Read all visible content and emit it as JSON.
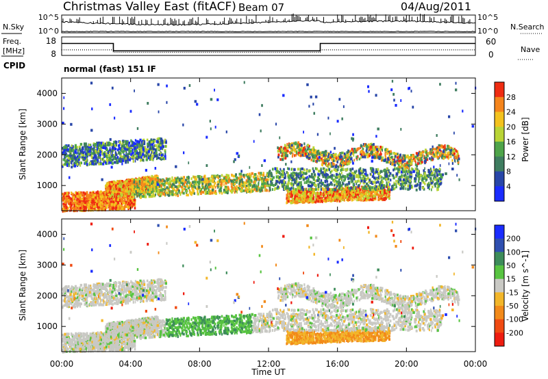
{
  "header": {
    "title": "Christmas Valley East (fitACF)",
    "beam": "Beam 07",
    "date": "04/Aug/2011",
    "cpid": "CPID",
    "program": "normal (fast) 151 IF"
  },
  "panel_labels": {
    "nsky": "N.Sky",
    "nsearch": "N.Search",
    "freq": "Freq.",
    "freq_unit": "[MHz]",
    "nave": "Nave"
  },
  "chart_data": [
    {
      "type": "line",
      "name": "noise",
      "left_axis": {
        "label": "N.Sky",
        "ticks": [
          "10^5",
          "10^0"
        ]
      },
      "right_axis": {
        "label": "N.Search",
        "ticks": [
          "10^5",
          "10^0"
        ]
      },
      "x": [
        0,
        24
      ],
      "description_units": "hours UT"
    },
    {
      "type": "line",
      "name": "frequency",
      "left_axis": {
        "label": "Freq. [MHz]",
        "ticks": [
          "18",
          "8"
        ],
        "ylim": [
          8,
          18
        ]
      },
      "right_axis": {
        "label": "Nave",
        "ticks": [
          "60",
          "0"
        ],
        "ylim": [
          0,
          60
        ]
      },
      "freq_series": {
        "x": [
          0,
          3.0,
          3.0,
          15.0,
          15.0,
          24
        ],
        "y": [
          14.5,
          14.5,
          10.5,
          10.5,
          14.5,
          14.5
        ]
      },
      "nave_series": {
        "x": [
          0,
          3.0,
          3.0,
          15.0,
          15.0,
          24
        ],
        "y": [
          18,
          18,
          10,
          10,
          18,
          18
        ]
      }
    },
    {
      "type": "heatmap",
      "name": "power",
      "ylabel": "Slant Range [km]",
      "yticks": [
        1000,
        2000,
        3000,
        4000
      ],
      "ylim": [
        180,
        4500
      ],
      "colorbar": {
        "label": "Power [dB]",
        "ticks": [
          "4",
          "8",
          "12",
          "16",
          "20",
          "24",
          "28"
        ],
        "colors": [
          "#1a2cff",
          "#2846a8",
          "#3f7d60",
          "#4fa44a",
          "#b9d436",
          "#f3c21e",
          "#f5851c",
          "#ef2c12"
        ]
      }
    },
    {
      "type": "heatmap",
      "name": "velocity",
      "ylabel": "Slant Range [km]",
      "yticks": [
        1000,
        2000,
        3000,
        4000
      ],
      "ylim": [
        180,
        4500
      ],
      "colorbar": {
        "label": "Velocity [m s^-1]",
        "ticks": [
          "200",
          "100",
          "50",
          "15",
          "-15",
          "-50",
          "-100",
          "-200"
        ],
        "colors": [
          "#1a2cff",
          "#2f4fb0",
          "#3d8c5a",
          "#58c441",
          "#c9c9c4",
          "#f2b62a",
          "#f28a1a",
          "#f04a12",
          "#ee1c10"
        ]
      }
    }
  ],
  "xaxis": {
    "label": "Time UT",
    "ticks": [
      "00:00",
      "04:00",
      "08:00",
      "12:00",
      "16:00",
      "20:00",
      "00:00"
    ]
  }
}
